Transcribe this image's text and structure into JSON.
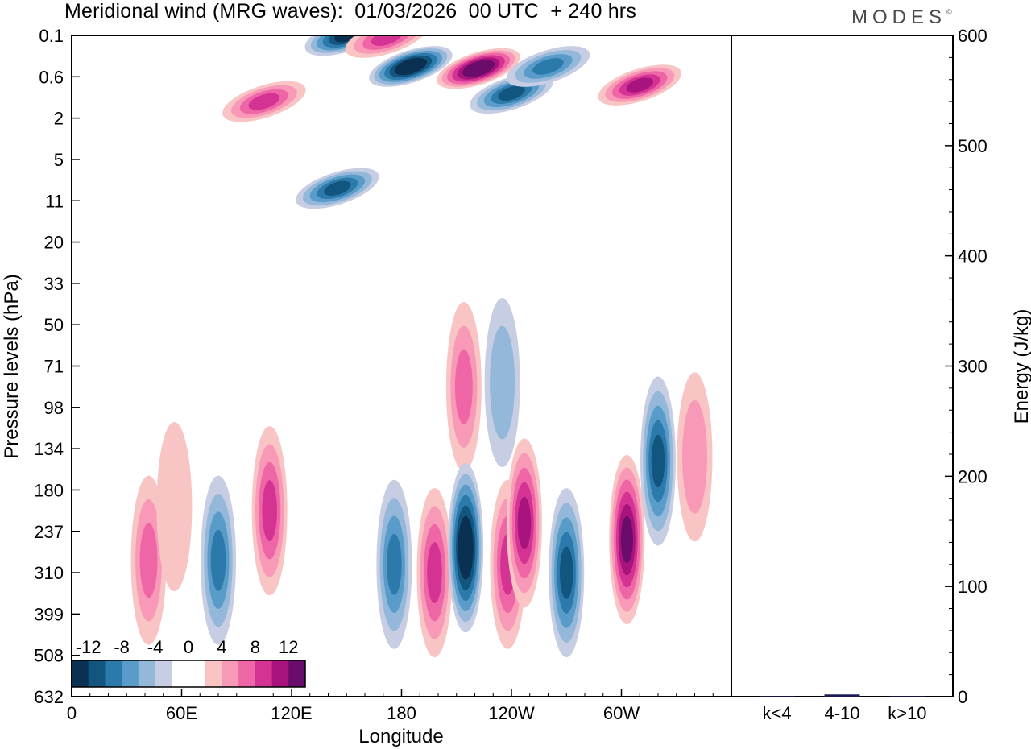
{
  "header": {
    "title": "Meridional wind (MRG waves):  01/03/2026  00 UTC  + 240 hrs",
    "logo_text": "MODES",
    "logo_mark": "©"
  },
  "chart_data": [
    {
      "type": "heatmap",
      "title": "Meridional wind (MRG waves):  01/03/2026  00 UTC  + 240 hrs",
      "xlabel": "Longitude",
      "ylabel": "Pressure levels (hPa)",
      "x_ticks": [
        "0",
        "60E",
        "120E",
        "180",
        "120W",
        "60W"
      ],
      "x_tick_positions_deg": [
        0,
        60,
        120,
        180,
        240,
        300
      ],
      "xlim": [
        0,
        360
      ],
      "y_ticks": [
        "0.1",
        "0.6",
        "2",
        "5",
        "11",
        "20",
        "33",
        "50",
        "71",
        "98",
        "134",
        "180",
        "237",
        "310",
        "399",
        "508",
        "632"
      ],
      "color_scale": {
        "labels": [
          "-12",
          "-8",
          "-4",
          "0",
          "4",
          "8",
          "12"
        ],
        "levels": [
          -14,
          -12,
          -10,
          -8,
          -6,
          -4,
          -2,
          0,
          2,
          4,
          6,
          8,
          10,
          12,
          14
        ],
        "colors": [
          "#0a3152",
          "#12557f",
          "#2c79ac",
          "#5a9cc9",
          "#93b8da",
          "#c7cde2",
          "#ffffff",
          "#ffffff",
          "#f8c4c4",
          "#f89ab7",
          "#ef66a7",
          "#d43393",
          "#a8137d",
          "#6a0c6c"
        ]
      },
      "features": [
        {
          "lon": 105,
          "level_index": 1.6,
          "value": 8
        },
        {
          "lon": 150,
          "level_index": 0.0,
          "value": -12
        },
        {
          "lon": 172,
          "level_index": 0.05,
          "value": 8
        },
        {
          "lon": 185,
          "level_index": 0.75,
          "value": -14
        },
        {
          "lon": 222,
          "level_index": 0.8,
          "value": 14
        },
        {
          "lon": 240,
          "level_index": 1.4,
          "value": -10
        },
        {
          "lon": 260,
          "level_index": 0.75,
          "value": -8
        },
        {
          "lon": 310,
          "level_index": 1.2,
          "value": 10
        },
        {
          "lon": 145,
          "level_index": 3.7,
          "value": -10
        },
        {
          "lon": 214,
          "level_index": 8.5,
          "value": 6
        },
        {
          "lon": 235,
          "level_index": 8.4,
          "value": -5
        },
        {
          "lon": 42,
          "level_index": 12.7,
          "value": 6
        },
        {
          "lon": 56,
          "level_index": 11.4,
          "value": 3
        },
        {
          "lon": 80,
          "level_index": 12.7,
          "value": -8
        },
        {
          "lon": 108,
          "level_index": 11.5,
          "value": 8
        },
        {
          "lon": 176,
          "level_index": 12.8,
          "value": -8
        },
        {
          "lon": 198,
          "level_index": 13.0,
          "value": 8
        },
        {
          "lon": 215,
          "level_index": 12.4,
          "value": -14
        },
        {
          "lon": 238,
          "level_index": 12.8,
          "value": 8
        },
        {
          "lon": 247,
          "level_index": 11.8,
          "value": 10
        },
        {
          "lon": 270,
          "level_index": 13.0,
          "value": -10
        },
        {
          "lon": 303,
          "level_index": 12.2,
          "value": 12
        },
        {
          "lon": 320,
          "level_index": 10.3,
          "value": -10
        },
        {
          "lon": 340,
          "level_index": 10.2,
          "value": 5
        }
      ]
    },
    {
      "type": "bar",
      "ylabel": "Energy (J/kg)",
      "categories": [
        "k<4",
        "4-10",
        "k>10"
      ],
      "values": [
        0.5,
        2,
        0.5
      ],
      "ylim": [
        0,
        600
      ],
      "y_ticks": [
        "0",
        "100",
        "200",
        "300",
        "400",
        "500",
        "600"
      ]
    }
  ]
}
